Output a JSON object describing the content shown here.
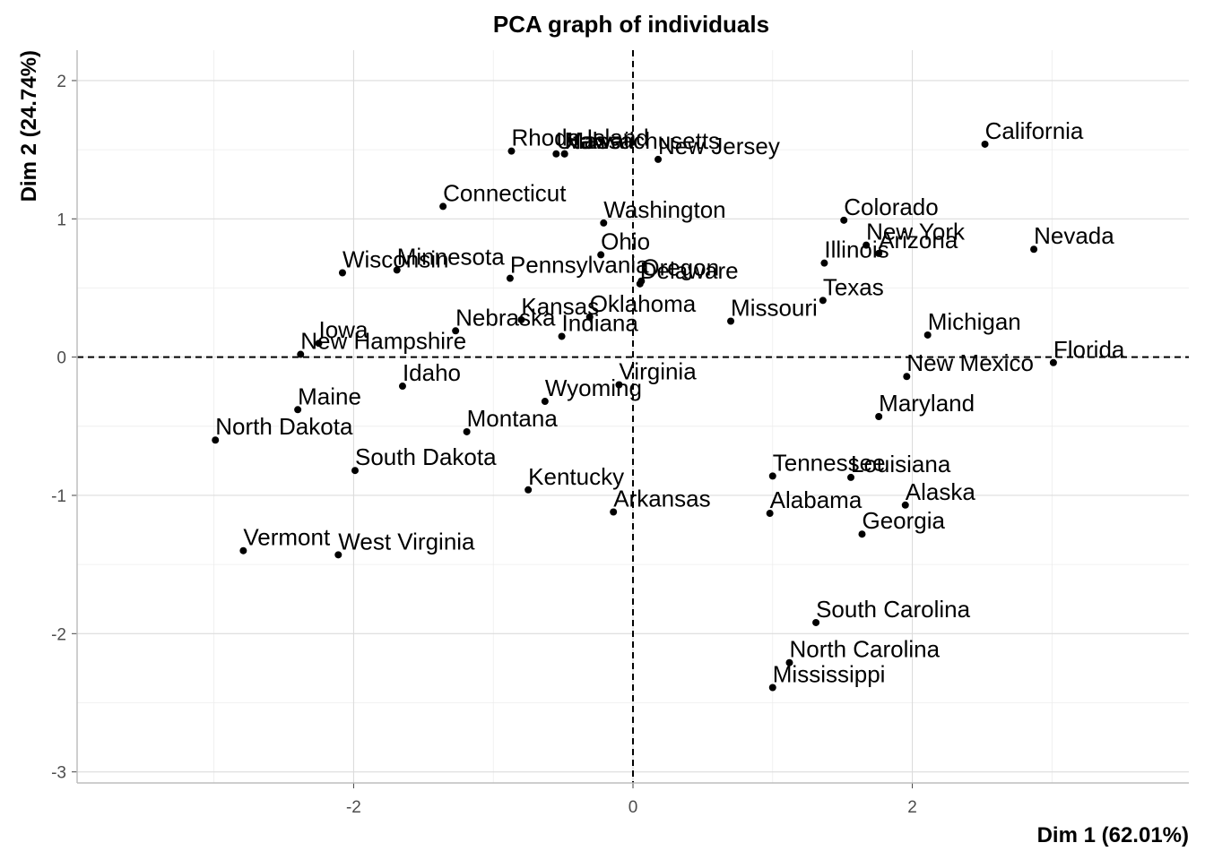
{
  "chart_data": {
    "type": "scatter",
    "title": "PCA graph of individuals",
    "xlabel": "Dim 1 (62.01%)",
    "ylabel": "Dim 2 (24.74%)",
    "xlim": [
      -3.98,
      3.98
    ],
    "ylim": [
      -3.08,
      2.22
    ],
    "xticks": [
      -2,
      0,
      2
    ],
    "yticks": [
      -3,
      -2,
      -1,
      0,
      1,
      2
    ],
    "grid": true,
    "reference_lines": {
      "x": 0,
      "y": 0,
      "style": "dashed"
    },
    "points": [
      {
        "label": "Alabama",
        "x": 0.98,
        "y": -1.13
      },
      {
        "label": "Alaska",
        "x": 1.95,
        "y": -1.07
      },
      {
        "label": "Arizona",
        "x": 1.76,
        "y": 0.75
      },
      {
        "label": "Arkansas",
        "x": -0.14,
        "y": -1.12
      },
      {
        "label": "California",
        "x": 2.52,
        "y": 1.54
      },
      {
        "label": "Colorado",
        "x": 1.51,
        "y": 0.99
      },
      {
        "label": "Connecticut",
        "x": -1.36,
        "y": 1.09
      },
      {
        "label": "Delaware",
        "x": 0.05,
        "y": 0.53
      },
      {
        "label": "Florida",
        "x": 3.01,
        "y": -0.04
      },
      {
        "label": "Georgia",
        "x": 1.64,
        "y": -1.28
      },
      {
        "label": "Hawaii",
        "x": -0.49,
        "y": 1.47
      },
      {
        "label": "Idaho",
        "x": -1.65,
        "y": -0.21
      },
      {
        "label": "Illinois",
        "x": 1.37,
        "y": 0.68
      },
      {
        "label": "Indiana",
        "x": -0.51,
        "y": 0.15
      },
      {
        "label": "Iowa",
        "x": -2.25,
        "y": 0.1
      },
      {
        "label": "Kansas",
        "x": -0.8,
        "y": 0.27
      },
      {
        "label": "Kentucky",
        "x": -0.75,
        "y": -0.96
      },
      {
        "label": "Louisiana",
        "x": 1.56,
        "y": -0.87
      },
      {
        "label": "Maine",
        "x": -2.4,
        "y": -0.38
      },
      {
        "label": "Maryland",
        "x": 1.76,
        "y": -0.43
      },
      {
        "label": "Massachusetts",
        "x": -0.49,
        "y": 1.47
      },
      {
        "label": "Michigan",
        "x": 2.11,
        "y": 0.16
      },
      {
        "label": "Minnesota",
        "x": -1.69,
        "y": 0.63
      },
      {
        "label": "Mississippi",
        "x": 1.0,
        "y": -2.39
      },
      {
        "label": "Missouri",
        "x": 0.7,
        "y": 0.26
      },
      {
        "label": "Montana",
        "x": -1.19,
        "y": -0.54
      },
      {
        "label": "Nebraska",
        "x": -1.27,
        "y": 0.19
      },
      {
        "label": "Nevada",
        "x": 2.87,
        "y": 0.78
      },
      {
        "label": "New Hampshire",
        "x": -2.38,
        "y": 0.02
      },
      {
        "label": "New Jersey",
        "x": 0.18,
        "y": 1.43
      },
      {
        "label": "New Mexico",
        "x": 1.96,
        "y": -0.14
      },
      {
        "label": "New York",
        "x": 1.67,
        "y": 0.81
      },
      {
        "label": "North Carolina",
        "x": 1.12,
        "y": -2.21
      },
      {
        "label": "North Dakota",
        "x": -2.99,
        "y": -0.6
      },
      {
        "label": "Ohio",
        "x": -0.23,
        "y": 0.74
      },
      {
        "label": "Oklahoma",
        "x": -0.31,
        "y": 0.29
      },
      {
        "label": "Oregon",
        "x": 0.06,
        "y": 0.55
      },
      {
        "label": "Pennsylvania",
        "x": -0.88,
        "y": 0.57
      },
      {
        "label": "Rhode Island",
        "x": -0.87,
        "y": 1.49
      },
      {
        "label": "South Carolina",
        "x": 1.31,
        "y": -1.92
      },
      {
        "label": "South Dakota",
        "x": -1.99,
        "y": -0.82
      },
      {
        "label": "Tennessee",
        "x": 1.0,
        "y": -0.86
      },
      {
        "label": "Texas",
        "x": 1.36,
        "y": 0.41
      },
      {
        "label": "Utah",
        "x": -0.55,
        "y": 1.47
      },
      {
        "label": "Vermont",
        "x": -2.79,
        "y": -1.4
      },
      {
        "label": "Virginia",
        "x": -0.1,
        "y": -0.2
      },
      {
        "label": "Washington",
        "x": -0.21,
        "y": 0.97
      },
      {
        "label": "West Virginia",
        "x": -2.11,
        "y": -1.43
      },
      {
        "label": "Wisconsin",
        "x": -2.08,
        "y": 0.61
      },
      {
        "label": "Wyoming",
        "x": -0.63,
        "y": -0.32
      }
    ]
  }
}
